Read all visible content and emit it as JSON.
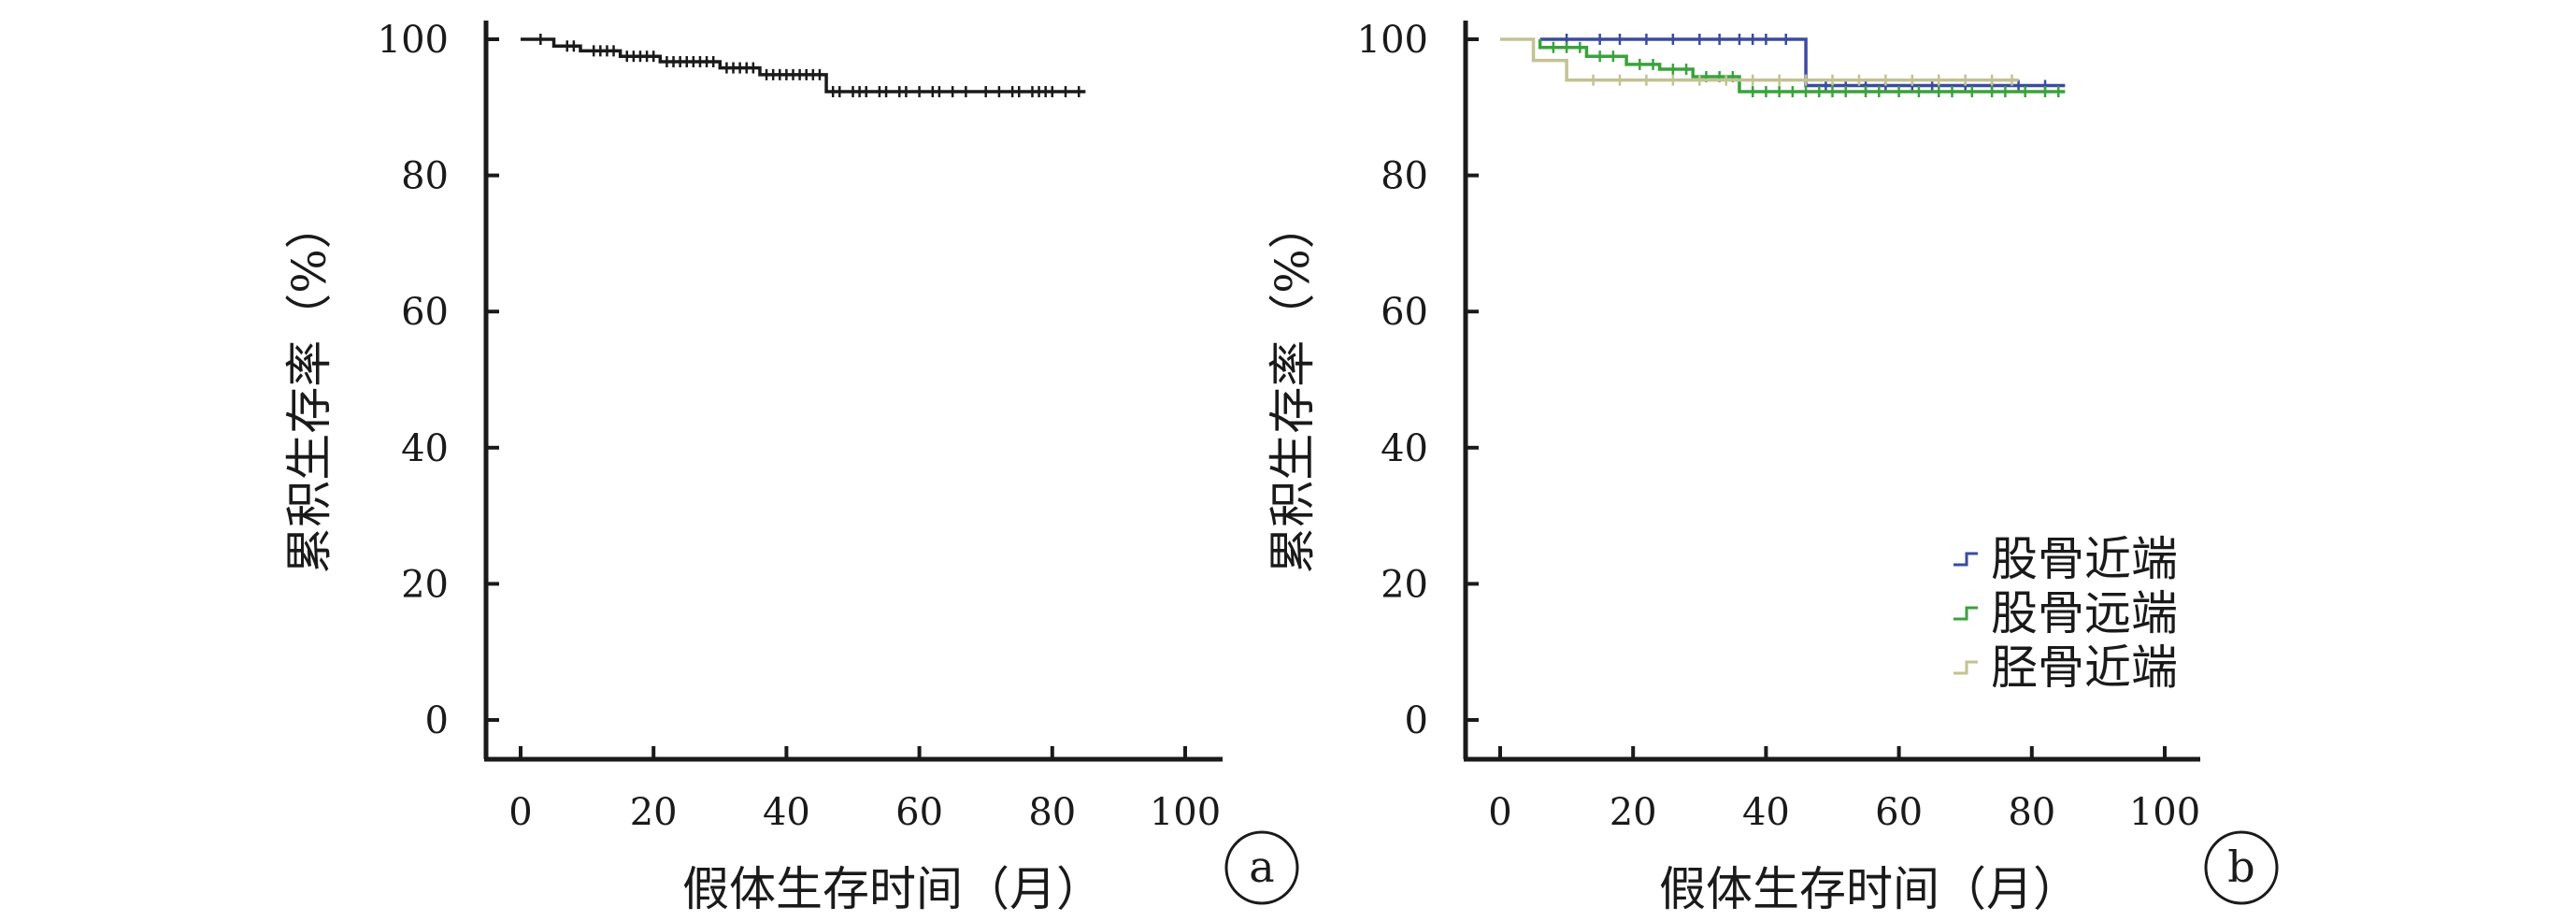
{
  "chart_data": [
    {
      "type": "line",
      "panel_label": "a",
      "xlabel": "假体生存时间（月）",
      "ylabel": "累积生存率（%）",
      "xlim": [
        0,
        100
      ],
      "ylim": [
        0,
        100
      ],
      "xticks": [
        0,
        20,
        40,
        60,
        80,
        100
      ],
      "yticks": [
        0,
        20,
        40,
        60,
        80,
        100
      ],
      "grid": false,
      "series": [
        {
          "color": "#1a1a1a",
          "steps": [
            [
              0,
              100
            ],
            [
              5,
              99.0
            ],
            [
              9,
              98.3
            ],
            [
              15,
              97.5
            ],
            [
              21,
              96.7
            ],
            [
              30,
              95.8
            ],
            [
              36,
              94.8
            ],
            [
              46,
              92.3
            ],
            [
              85,
              92.3
            ]
          ],
          "censored": [
            3,
            7,
            8,
            11,
            12,
            13,
            14,
            16,
            17,
            18,
            19,
            20,
            22,
            23,
            24,
            25,
            26,
            27,
            28,
            29,
            31,
            32,
            33,
            34,
            35,
            37,
            38,
            39,
            40,
            41,
            42,
            43,
            44,
            45,
            47,
            48,
            50,
            51,
            52,
            54,
            55,
            57,
            58,
            60,
            62,
            63,
            65,
            67,
            70,
            72,
            74,
            75,
            77,
            78,
            79,
            80,
            82,
            84
          ]
        }
      ]
    },
    {
      "type": "line",
      "panel_label": "b",
      "xlabel": "假体生存时间（月）",
      "ylabel": "累积生存率（%）",
      "xlim": [
        0,
        100
      ],
      "ylim": [
        0,
        100
      ],
      "xticks": [
        0,
        20,
        40,
        60,
        80,
        100
      ],
      "yticks": [
        0,
        20,
        40,
        60,
        80,
        100
      ],
      "grid": false,
      "legend_position": "bottom-right",
      "series": [
        {
          "name": "股骨近端",
          "color": "#3b4ba0",
          "steps": [
            [
              6,
              100
            ],
            [
              46,
              100
            ],
            [
              46,
              93.2
            ],
            [
              85,
              93.2
            ]
          ],
          "censored": [
            10,
            15,
            18,
            22,
            26,
            30,
            33,
            36,
            38,
            40,
            43,
            49,
            52,
            55,
            58,
            62,
            65,
            70,
            74,
            78,
            82
          ]
        },
        {
          "name": "股骨远端",
          "color": "#3aa23c",
          "steps": [
            [
              6,
              100
            ],
            [
              6,
              98.8
            ],
            [
              13,
              98.8
            ],
            [
              13,
              97.5
            ],
            [
              19,
              97.5
            ],
            [
              19,
              96.3
            ],
            [
              24,
              96.3
            ],
            [
              24,
              95.6
            ],
            [
              29,
              95.6
            ],
            [
              29,
              94.5
            ],
            [
              36,
              94.5
            ],
            [
              36,
              92.3
            ],
            [
              85,
              92.3
            ]
          ],
          "censored": [
            8,
            10,
            12,
            15,
            17,
            21,
            23,
            26,
            28,
            31,
            33,
            35,
            38,
            40,
            42,
            44,
            46,
            48,
            50,
            52,
            55,
            57,
            60,
            63,
            66,
            68,
            71,
            74,
            76,
            79,
            82,
            84
          ]
        },
        {
          "name": "胫骨近端",
          "color": "#c2c293",
          "steps": [
            [
              0,
              100
            ],
            [
              5,
              100
            ],
            [
              5,
              96.9
            ],
            [
              10,
              96.9
            ],
            [
              10,
              94.0
            ],
            [
              78,
              94.0
            ]
          ],
          "censored": [
            14,
            18,
            22,
            26,
            30,
            34,
            38,
            42,
            46,
            50,
            54,
            58,
            62,
            66,
            70,
            74,
            77
          ]
        }
      ]
    }
  ]
}
